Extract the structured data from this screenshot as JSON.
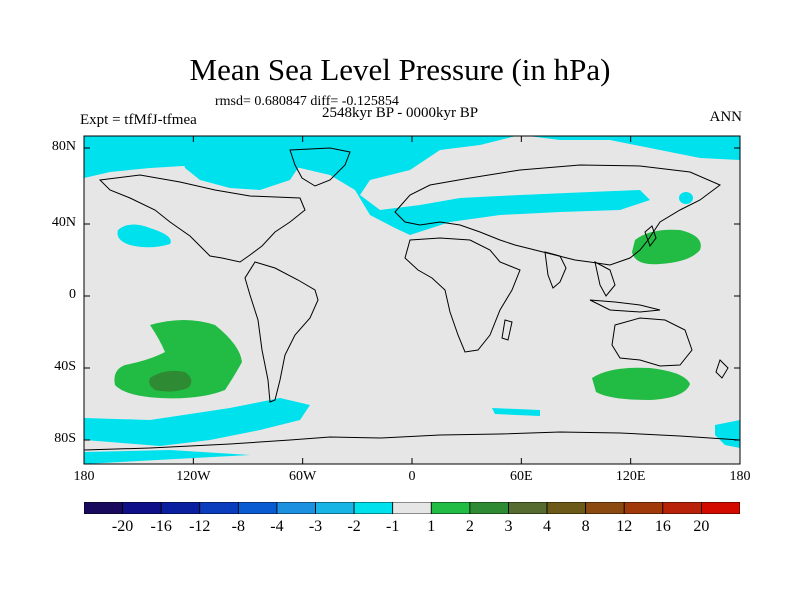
{
  "title": "Mean Sea Level Pressure (in hPa)",
  "stats": "rmsd= 0.680847 diff= -0.125854",
  "period": "2548kyr BP - 0000kyr BP",
  "experiment": "Expt = tfMfJ-tfmea",
  "season": "ANN",
  "axes": {
    "y_ticks": [
      "80N",
      "40N",
      "0",
      "40S",
      "80S"
    ],
    "x_ticks": [
      "180",
      "120W",
      "60W",
      "0",
      "60E",
      "120E",
      "180"
    ]
  },
  "colorbar": {
    "colors": [
      "#1a0a5e",
      "#0f0f8a",
      "#0a1fa0",
      "#0a3cbe",
      "#0a5ad2",
      "#1e90e0",
      "#19b4e6",
      "#00e1ee",
      "#e6e6e6",
      "#22bb44",
      "#2e8b33",
      "#556b2f",
      "#6b5a18",
      "#8a4a10",
      "#a03a0a",
      "#b82208",
      "#d20a00"
    ],
    "labels": [
      "-20",
      "-16",
      "-12",
      "-8",
      "-4",
      "-3",
      "-2",
      "-1",
      "1",
      "2",
      "3",
      "4",
      "8",
      "12",
      "16",
      "20"
    ]
  },
  "colors": {
    "ocean_land_neutral": "#e6e6e6",
    "neg_small": "#00e1ee",
    "pos_small": "#22bb44",
    "pos_mid": "#2e8b33"
  }
}
